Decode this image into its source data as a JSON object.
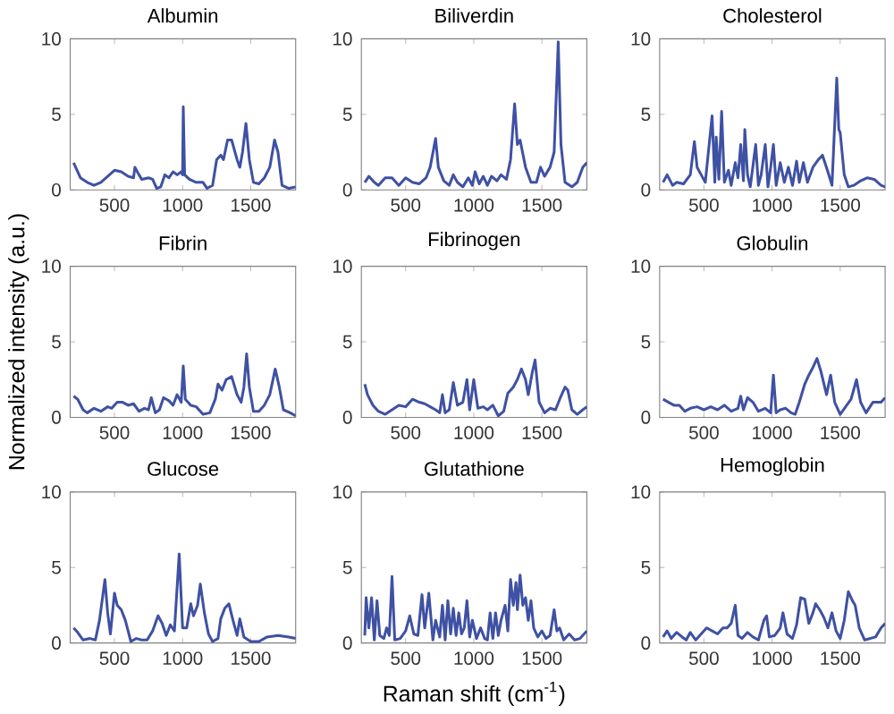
{
  "chart_data": [
    {
      "type": "line",
      "title": "Albumin",
      "color": "#3f51a3",
      "xlim": [
        175,
        1830
      ],
      "ylim": [
        0,
        10
      ],
      "xticks": [
        500,
        1000,
        1500
      ],
      "yticks": [
        0,
        5,
        10
      ],
      "x": [
        200,
        250,
        300,
        350,
        400,
        450,
        500,
        550,
        600,
        640,
        650,
        680,
        700,
        750,
        780,
        810,
        840,
        870,
        900,
        930,
        960,
        990,
        1000,
        1005,
        1015,
        1050,
        1100,
        1150,
        1180,
        1220,
        1250,
        1280,
        1300,
        1330,
        1360,
        1400,
        1420,
        1440,
        1465,
        1490,
        1520,
        1560,
        1600,
        1640,
        1675,
        1700,
        1730,
        1780,
        1830
      ],
      "values": [
        1.8,
        0.8,
        0.5,
        0.3,
        0.5,
        0.9,
        1.3,
        1.2,
        0.9,
        0.8,
        1.5,
        1.0,
        0.7,
        0.8,
        0.7,
        0.1,
        0.2,
        1.0,
        0.8,
        1.2,
        1.0,
        1.2,
        1.0,
        5.5,
        1.0,
        0.7,
        0.5,
        0.5,
        0.1,
        0.3,
        2.0,
        2.3,
        2.0,
        3.3,
        3.3,
        2.0,
        1.5,
        2.5,
        4.4,
        2.0,
        0.5,
        0.4,
        0.8,
        1.5,
        3.3,
        2.5,
        0.3,
        0.1,
        0.2
      ]
    },
    {
      "type": "line",
      "title": "Biliverdin",
      "color": "#3f51a3",
      "xlim": [
        175,
        1830
      ],
      "ylim": [
        0,
        10
      ],
      "xticks": [
        500,
        1000,
        1500
      ],
      "yticks": [
        0,
        5,
        10
      ],
      "x": [
        200,
        230,
        270,
        300,
        350,
        400,
        450,
        500,
        550,
        600,
        650,
        680,
        720,
        740,
        780,
        820,
        850,
        880,
        920,
        960,
        990,
        1010,
        1040,
        1070,
        1100,
        1130,
        1170,
        1200,
        1240,
        1270,
        1300,
        1320,
        1340,
        1380,
        1420,
        1460,
        1490,
        1520,
        1560,
        1590,
        1620,
        1640,
        1670,
        1720,
        1760,
        1800,
        1830
      ],
      "values": [
        0.5,
        0.9,
        0.5,
        0.3,
        0.8,
        0.8,
        0.3,
        0.8,
        0.5,
        0.4,
        0.8,
        1.5,
        3.4,
        1.5,
        0.6,
        0.3,
        1.0,
        0.5,
        0.2,
        0.8,
        0.3,
        1.2,
        0.4,
        0.9,
        0.3,
        0.9,
        0.6,
        1.0,
        0.7,
        2.0,
        5.7,
        3.0,
        3.3,
        1.5,
        0.5,
        0.5,
        1.5,
        0.9,
        1.5,
        2.5,
        9.8,
        3.0,
        0.5,
        0.2,
        0.5,
        1.5,
        1.8
      ]
    },
    {
      "type": "line",
      "title": "Cholesterol",
      "color": "#3f51a3",
      "xlim": [
        175,
        1830
      ],
      "ylim": [
        0,
        10
      ],
      "xticks": [
        500,
        1000,
        1500
      ],
      "yticks": [
        0,
        5,
        10
      ],
      "x": [
        200,
        230,
        270,
        300,
        350,
        400,
        430,
        450,
        480,
        510,
        560,
        580,
        590,
        610,
        630,
        650,
        680,
        700,
        730,
        750,
        770,
        790,
        800,
        820,
        840,
        860,
        880,
        900,
        920,
        950,
        970,
        990,
        1010,
        1030,
        1060,
        1090,
        1120,
        1150,
        1180,
        1200,
        1230,
        1260,
        1300,
        1340,
        1370,
        1410,
        1440,
        1475,
        1490,
        1500,
        1530,
        1560,
        1600,
        1650,
        1700,
        1750,
        1800,
        1830
      ],
      "values": [
        0.5,
        1.0,
        0.3,
        0.5,
        0.4,
        1.0,
        3.2,
        1.5,
        1.0,
        0.5,
        4.9,
        0.5,
        3.5,
        0.7,
        5.2,
        0.5,
        1.3,
        0.3,
        1.8,
        0.8,
        3.0,
        0.6,
        4.0,
        1.0,
        0.2,
        1.6,
        3.0,
        0.3,
        1.0,
        3.0,
        0.2,
        1.5,
        3.0,
        0.3,
        1.8,
        0.5,
        1.5,
        0.3,
        1.9,
        0.5,
        1.8,
        0.5,
        1.5,
        2.0,
        2.3,
        1.2,
        0.3,
        7.4,
        4.0,
        3.8,
        1.0,
        0.2,
        0.3,
        0.6,
        0.8,
        0.7,
        0.3,
        0.2
      ]
    },
    {
      "type": "line",
      "title": "Fibrin",
      "ylabel": "Normalized intensity (a.u.)",
      "color": "#3f51a3",
      "xlim": [
        175,
        1830
      ],
      "ylim": [
        0,
        10
      ],
      "xticks": [
        500,
        1000,
        1500
      ],
      "yticks": [
        0,
        5,
        10
      ],
      "x": [
        200,
        230,
        270,
        300,
        350,
        400,
        450,
        480,
        520,
        560,
        600,
        640,
        680,
        720,
        750,
        770,
        800,
        830,
        860,
        900,
        930,
        960,
        990,
        1005,
        1020,
        1060,
        1100,
        1150,
        1200,
        1240,
        1260,
        1290,
        1320,
        1360,
        1400,
        1430,
        1450,
        1470,
        1490,
        1520,
        1560,
        1600,
        1640,
        1680,
        1710,
        1740,
        1790,
        1830
      ],
      "values": [
        1.4,
        1.2,
        0.5,
        0.3,
        0.6,
        0.4,
        0.7,
        0.6,
        1.0,
        1.0,
        0.8,
        0.9,
        0.4,
        0.6,
        0.5,
        1.3,
        0.3,
        0.5,
        1.3,
        1.1,
        0.8,
        1.5,
        1.0,
        3.4,
        1.2,
        0.8,
        0.7,
        0.2,
        0.3,
        1.2,
        2.2,
        1.8,
        2.5,
        2.7,
        1.5,
        1.0,
        2.0,
        4.2,
        2.0,
        0.4,
        0.4,
        0.8,
        1.5,
        3.2,
        2.0,
        0.5,
        0.3,
        0.1
      ]
    },
    {
      "type": "line",
      "title": "Fibrinogen",
      "color": "#3f51a3",
      "xlim": [
        175,
        1830
      ],
      "ylim": [
        0,
        10
      ],
      "xticks": [
        500,
        1000,
        1500
      ],
      "yticks": [
        0,
        5,
        10
      ],
      "x": [
        200,
        220,
        260,
        300,
        350,
        400,
        450,
        500,
        550,
        600,
        640,
        680,
        720,
        750,
        770,
        790,
        820,
        850,
        880,
        920,
        950,
        970,
        1000,
        1030,
        1070,
        1100,
        1140,
        1180,
        1220,
        1250,
        1290,
        1320,
        1350,
        1380,
        1400,
        1430,
        1450,
        1480,
        1520,
        1560,
        1600,
        1640,
        1670,
        1690,
        1720,
        1760,
        1800,
        1830
      ],
      "values": [
        2.2,
        1.5,
        0.8,
        0.4,
        0.2,
        0.5,
        0.8,
        0.7,
        1.2,
        1.0,
        0.9,
        0.7,
        0.5,
        0.3,
        1.5,
        0.3,
        0.5,
        2.3,
        0.8,
        1.0,
        2.5,
        0.5,
        2.5,
        0.6,
        0.7,
        0.5,
        0.8,
        0.1,
        0.4,
        1.6,
        2.0,
        2.5,
        3.2,
        2.5,
        1.5,
        3.0,
        3.8,
        1.0,
        0.3,
        0.6,
        0.5,
        1.4,
        2.0,
        1.8,
        0.5,
        0.2,
        0.5,
        0.7
      ]
    },
    {
      "type": "line",
      "title": "Globulin",
      "color": "#3f51a3",
      "xlim": [
        175,
        1830
      ],
      "ylim": [
        0,
        10
      ],
      "xticks": [
        500,
        1000,
        1500
      ],
      "yticks": [
        0,
        5,
        10
      ],
      "x": [
        200,
        240,
        280,
        320,
        360,
        400,
        450,
        500,
        550,
        600,
        650,
        700,
        750,
        770,
        790,
        820,
        860,
        900,
        950,
        990,
        1010,
        1030,
        1060,
        1100,
        1140,
        1170,
        1200,
        1240,
        1270,
        1300,
        1330,
        1360,
        1400,
        1430,
        1460,
        1500,
        1540,
        1580,
        1620,
        1650,
        1690,
        1740,
        1800,
        1830
      ],
      "values": [
        1.2,
        1.0,
        0.8,
        0.8,
        0.4,
        0.6,
        0.7,
        0.5,
        0.7,
        0.5,
        0.8,
        0.4,
        0.6,
        1.4,
        0.5,
        1.3,
        1.0,
        0.4,
        0.6,
        0.3,
        2.8,
        0.3,
        0.5,
        0.6,
        0.3,
        0.2,
        1.0,
        2.2,
        2.8,
        3.3,
        3.9,
        3.0,
        1.5,
        2.8,
        1.0,
        0.2,
        0.7,
        1.2,
        2.5,
        1.0,
        0.3,
        1.0,
        1.0,
        1.3
      ]
    },
    {
      "type": "line",
      "title": "Glucose",
      "color": "#3f51a3",
      "xlim": [
        175,
        1830
      ],
      "ylim": [
        0,
        10
      ],
      "xticks": [
        500,
        1000,
        1500
      ],
      "yticks": [
        0,
        5,
        10
      ],
      "x": [
        200,
        230,
        270,
        320,
        360,
        390,
        430,
        450,
        470,
        500,
        520,
        550,
        580,
        620,
        660,
        700,
        740,
        780,
        820,
        850,
        880,
        910,
        940,
        975,
        1000,
        1030,
        1060,
        1080,
        1110,
        1130,
        1160,
        1190,
        1220,
        1260,
        1280,
        1310,
        1340,
        1370,
        1400,
        1420,
        1450,
        1500,
        1560,
        1620,
        1700,
        1780,
        1830
      ],
      "values": [
        1.0,
        0.7,
        0.2,
        0.3,
        0.2,
        1.5,
        4.2,
        2.0,
        0.6,
        3.3,
        2.5,
        2.2,
        1.5,
        0.1,
        0.3,
        0.2,
        0.2,
        0.8,
        1.8,
        1.3,
        0.5,
        1.2,
        0.8,
        5.9,
        1.0,
        1.0,
        2.6,
        1.8,
        2.5,
        3.9,
        2.0,
        0.6,
        0.1,
        0.3,
        1.6,
        2.3,
        2.6,
        1.5,
        0.5,
        1.6,
        0.4,
        0.1,
        0.1,
        0.4,
        0.5,
        0.4,
        0.3
      ]
    },
    {
      "type": "line",
      "title": "Glutathione",
      "xlabel": "Raman shift (cm$^{-1}$)",
      "color": "#3f51a3",
      "xlim": [
        175,
        1830
      ],
      "ylim": [
        0,
        10
      ],
      "xticks": [
        500,
        1000,
        1500
      ],
      "yticks": [
        0,
        5,
        10
      ],
      "x": [
        200,
        210,
        230,
        250,
        270,
        290,
        310,
        340,
        360,
        380,
        400,
        420,
        460,
        500,
        530,
        560,
        590,
        620,
        640,
        670,
        700,
        720,
        750,
        770,
        790,
        810,
        830,
        850,
        870,
        890,
        910,
        930,
        950,
        970,
        990,
        1020,
        1050,
        1080,
        1100,
        1120,
        1140,
        1160,
        1180,
        1200,
        1230,
        1250,
        1270,
        1290,
        1310,
        1320,
        1340,
        1360,
        1380,
        1400,
        1420,
        1440,
        1470,
        1500,
        1530,
        1560,
        1590,
        1610,
        1630,
        1660,
        1700,
        1740,
        1780,
        1830
      ],
      "values": [
        0.5,
        3.0,
        1.0,
        3.0,
        0.2,
        2.8,
        0.5,
        0.3,
        1.0,
        0.5,
        4.4,
        0.2,
        0.3,
        0.8,
        1.8,
        0.6,
        0.5,
        3.2,
        1.0,
        3.3,
        0.2,
        1.5,
        0.4,
        2.5,
        0.2,
        2.8,
        0.6,
        2.3,
        0.5,
        2.0,
        0.6,
        1.0,
        2.8,
        0.4,
        1.5,
        0.3,
        1.0,
        0.3,
        0.2,
        2.0,
        0.3,
        2.0,
        0.5,
        1.5,
        2.5,
        0.8,
        4.2,
        2.5,
        4.0,
        2.2,
        4.5,
        2.5,
        3.0,
        1.5,
        2.8,
        1.0,
        0.4,
        0.8,
        0.3,
        0.5,
        2.2,
        0.8,
        1.0,
        0.2,
        0.6,
        0.2,
        0.3,
        0.8
      ]
    },
    {
      "type": "line",
      "title": "Hemoglobin",
      "color": "#3f51a3",
      "xlim": [
        175,
        1830
      ],
      "ylim": [
        0,
        10
      ],
      "xticks": [
        500,
        1000,
        1500
      ],
      "yticks": [
        0,
        5,
        10
      ],
      "x": [
        200,
        230,
        260,
        300,
        340,
        370,
        400,
        440,
        480,
        520,
        560,
        600,
        640,
        670,
        700,
        730,
        750,
        780,
        820,
        860,
        900,
        940,
        960,
        980,
        1020,
        1060,
        1080,
        1110,
        1150,
        1180,
        1210,
        1240,
        1270,
        1300,
        1320,
        1350,
        1380,
        1410,
        1440,
        1470,
        1500,
        1530,
        1560,
        1590,
        1610,
        1640,
        1680,
        1720,
        1760,
        1800,
        1830
      ],
      "values": [
        0.4,
        0.8,
        0.3,
        0.7,
        0.4,
        0.2,
        0.7,
        0.2,
        0.6,
        1.0,
        0.8,
        0.6,
        1.0,
        1.0,
        1.3,
        2.5,
        0.5,
        0.3,
        0.7,
        0.4,
        0.2,
        1.5,
        1.8,
        0.4,
        0.5,
        1.0,
        2.0,
        0.6,
        0.3,
        1.2,
        3.0,
        2.9,
        1.3,
        2.0,
        2.6,
        2.2,
        1.7,
        1.0,
        2.0,
        0.8,
        0.3,
        1.5,
        3.4,
        2.8,
        2.5,
        1.0,
        0.2,
        0.3,
        0.4,
        1.0,
        1.3
      ]
    }
  ]
}
